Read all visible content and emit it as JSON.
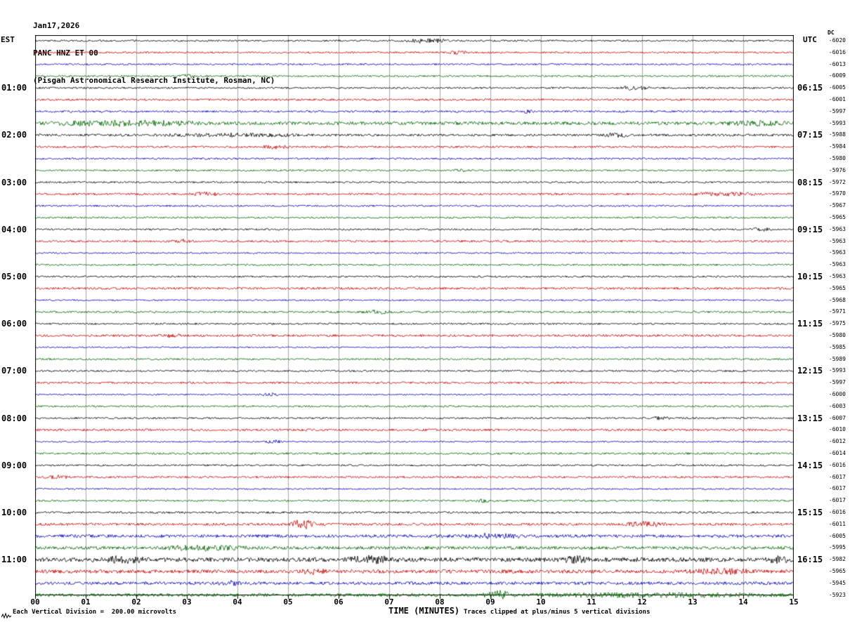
{
  "header": {
    "date": "Jan17,2026",
    "station": "PANC HNZ ET 00",
    "institute": "(Pisgah Astronomical Research Institute, Rosman, NC)"
  },
  "axes": {
    "left_label": "EST",
    "right_label": "UTC",
    "dc_label": "DC",
    "x_label": "TIME (MINUTES)"
  },
  "footer": {
    "scale_note": "Each Vertical Division =  200.00 microvolts",
    "clip_note": "Traces clipped at plus/minus 5 vertical divisions"
  },
  "chart_data": {
    "type": "line",
    "subtype": "helicorder-seismogram",
    "minutes_per_row": 15,
    "rows_count": 48,
    "x_ticks": [
      "00",
      "01",
      "02",
      "03",
      "04",
      "05",
      "06",
      "07",
      "08",
      "09",
      "10",
      "11",
      "12",
      "13",
      "14",
      "15"
    ],
    "label_row_indices": [
      4,
      8,
      12,
      16,
      20,
      24,
      28,
      32,
      36,
      40,
      44
    ],
    "est_labels": [
      "01:00",
      "02:00",
      "03:00",
      "04:00",
      "05:00",
      "06:00",
      "07:00",
      "08:00",
      "09:00",
      "10:00",
      "11:00"
    ],
    "utc_labels": [
      "06:15",
      "07:15",
      "08:15",
      "09:15",
      "10:15",
      "11:15",
      "12:15",
      "13:15",
      "14:15",
      "15:15",
      "16:15"
    ],
    "dc_values": [
      "-6020",
      "-6016",
      "-6013",
      "-6009",
      "-6005",
      "-6001",
      "-5997",
      "-5993",
      "-5988",
      "-5984",
      "-5980",
      "-5976",
      "-5972",
      "-5970",
      "-5967",
      "-5965",
      "-5963",
      "-5963",
      "-5963",
      "-5963",
      "-5963",
      "-5965",
      "-5968",
      "-5971",
      "-5975",
      "-5980",
      "-5985",
      "-5989",
      "-5993",
      "-5997",
      "-6000",
      "-6003",
      "-6007",
      "-6010",
      "-6012",
      "-6014",
      "-6016",
      "-6017",
      "-6017",
      "-6017",
      "-6016",
      "-6011",
      "-6005",
      "-5995",
      "-5982",
      "-5965",
      "-5945",
      "-5923"
    ],
    "trace_colors": {
      "black": "#000000",
      "red": "#cc0000",
      "blue": "#0000bb",
      "green": "#006600"
    },
    "grid_color": "#a6a6a6",
    "border_color": "#000000",
    "rows": [
      {
        "c": "black",
        "a": 0.7,
        "b": [
          [
            7.2,
            8.3,
            1.3
          ]
        ]
      },
      {
        "c": "red",
        "a": 0.7,
        "b": [
          [
            8.1,
            8.6,
            1.0
          ]
        ]
      },
      {
        "c": "blue",
        "a": 0.7,
        "b": []
      },
      {
        "c": "green",
        "a": 0.7,
        "b": [
          [
            2.8,
            3.2,
            1.1
          ]
        ]
      },
      {
        "c": "black",
        "a": 0.7,
        "b": [
          [
            11.4,
            12.2,
            1.2
          ]
        ]
      },
      {
        "c": "red",
        "a": 0.8,
        "b": []
      },
      {
        "c": "blue",
        "a": 0.8,
        "b": [
          [
            9.6,
            9.9,
            0.8
          ]
        ]
      },
      {
        "c": "green",
        "a": 1.3,
        "b": [
          [
            0,
            3.5,
            1.4
          ],
          [
            13.6,
            15,
            1.2
          ]
        ]
      },
      {
        "c": "black",
        "a": 0.9,
        "b": [
          [
            2.3,
            5.6,
            0.9
          ],
          [
            11.2,
            11.8,
            1.2
          ]
        ]
      },
      {
        "c": "red",
        "a": 0.8,
        "b": [
          [
            4.4,
            5.1,
            1.0
          ]
        ]
      },
      {
        "c": "blue",
        "a": 0.7,
        "b": []
      },
      {
        "c": "green",
        "a": 0.7,
        "b": [
          [
            8.2,
            8.6,
            1.0
          ]
        ]
      },
      {
        "c": "black",
        "a": 0.7,
        "b": []
      },
      {
        "c": "red",
        "a": 0.8,
        "b": [
          [
            3.0,
            3.7,
            1.1
          ],
          [
            12.8,
            14.4,
            1.1
          ]
        ]
      },
      {
        "c": "blue",
        "a": 0.7,
        "b": []
      },
      {
        "c": "green",
        "a": 0.7,
        "b": []
      },
      {
        "c": "black",
        "a": 0.7,
        "b": [
          [
            14.1,
            14.6,
            1.0
          ]
        ]
      },
      {
        "c": "red",
        "a": 0.8,
        "b": [
          [
            2.6,
            3.1,
            1.1
          ]
        ]
      },
      {
        "c": "blue",
        "a": 0.6,
        "b": []
      },
      {
        "c": "green",
        "a": 0.7,
        "b": []
      },
      {
        "c": "black",
        "a": 0.7,
        "b": []
      },
      {
        "c": "red",
        "a": 0.9,
        "b": []
      },
      {
        "c": "blue",
        "a": 0.6,
        "b": []
      },
      {
        "c": "green",
        "a": 0.8,
        "b": [
          [
            6.4,
            7.1,
            1.0
          ]
        ]
      },
      {
        "c": "black",
        "a": 0.7,
        "b": []
      },
      {
        "c": "red",
        "a": 0.9,
        "b": [
          [
            2.4,
            2.9,
            1.0
          ]
        ]
      },
      {
        "c": "blue",
        "a": 0.6,
        "b": []
      },
      {
        "c": "green",
        "a": 0.7,
        "b": []
      },
      {
        "c": "black",
        "a": 0.7,
        "b": []
      },
      {
        "c": "red",
        "a": 0.8,
        "b": []
      },
      {
        "c": "blue",
        "a": 0.6,
        "b": [
          [
            4.4,
            4.9,
            0.9
          ]
        ]
      },
      {
        "c": "green",
        "a": 0.7,
        "b": []
      },
      {
        "c": "black",
        "a": 0.7,
        "b": [
          [
            12.1,
            12.6,
            1.0
          ]
        ]
      },
      {
        "c": "red",
        "a": 0.9,
        "b": []
      },
      {
        "c": "blue",
        "a": 0.6,
        "b": [
          [
            4.5,
            5.0,
            1.0
          ]
        ]
      },
      {
        "c": "green",
        "a": 0.8,
        "b": []
      },
      {
        "c": "black",
        "a": 0.7,
        "b": []
      },
      {
        "c": "red",
        "a": 0.8,
        "b": [
          [
            0.2,
            0.7,
            1.0
          ]
        ]
      },
      {
        "c": "blue",
        "a": 0.6,
        "b": []
      },
      {
        "c": "green",
        "a": 0.7,
        "b": [
          [
            8.6,
            9.1,
            1.0
          ]
        ]
      },
      {
        "c": "black",
        "a": 0.8,
        "b": []
      },
      {
        "c": "red",
        "a": 1.0,
        "b": [
          [
            5.0,
            5.6,
            3.2
          ],
          [
            11.6,
            12.5,
            1.5
          ]
        ]
      },
      {
        "c": "blue",
        "a": 1.2,
        "b": [
          [
            8.3,
            9.7,
            1.3
          ]
        ]
      },
      {
        "c": "green",
        "a": 1.2,
        "b": [
          [
            2.4,
            4.3,
            1.5
          ]
        ]
      },
      {
        "c": "black",
        "a": 1.7,
        "b": [
          [
            1.3,
            2.2,
            1.9
          ],
          [
            6.1,
            7.2,
            1.9
          ],
          [
            10.4,
            11.0,
            1.7
          ],
          [
            14.4,
            15,
            1.5
          ]
        ]
      },
      {
        "c": "red",
        "a": 1.4,
        "b": [
          [
            5.2,
            5.8,
            1.6
          ],
          [
            12.8,
            14.3,
            1.5
          ]
        ]
      },
      {
        "c": "blue",
        "a": 1.2,
        "b": [
          [
            3.6,
            4.1,
            1.4
          ]
        ]
      },
      {
        "c": "green",
        "a": 1.3,
        "b": [
          [
            8.8,
            9.5,
            2.6
          ],
          [
            9.5,
            15,
            1.0
          ]
        ]
      }
    ]
  }
}
